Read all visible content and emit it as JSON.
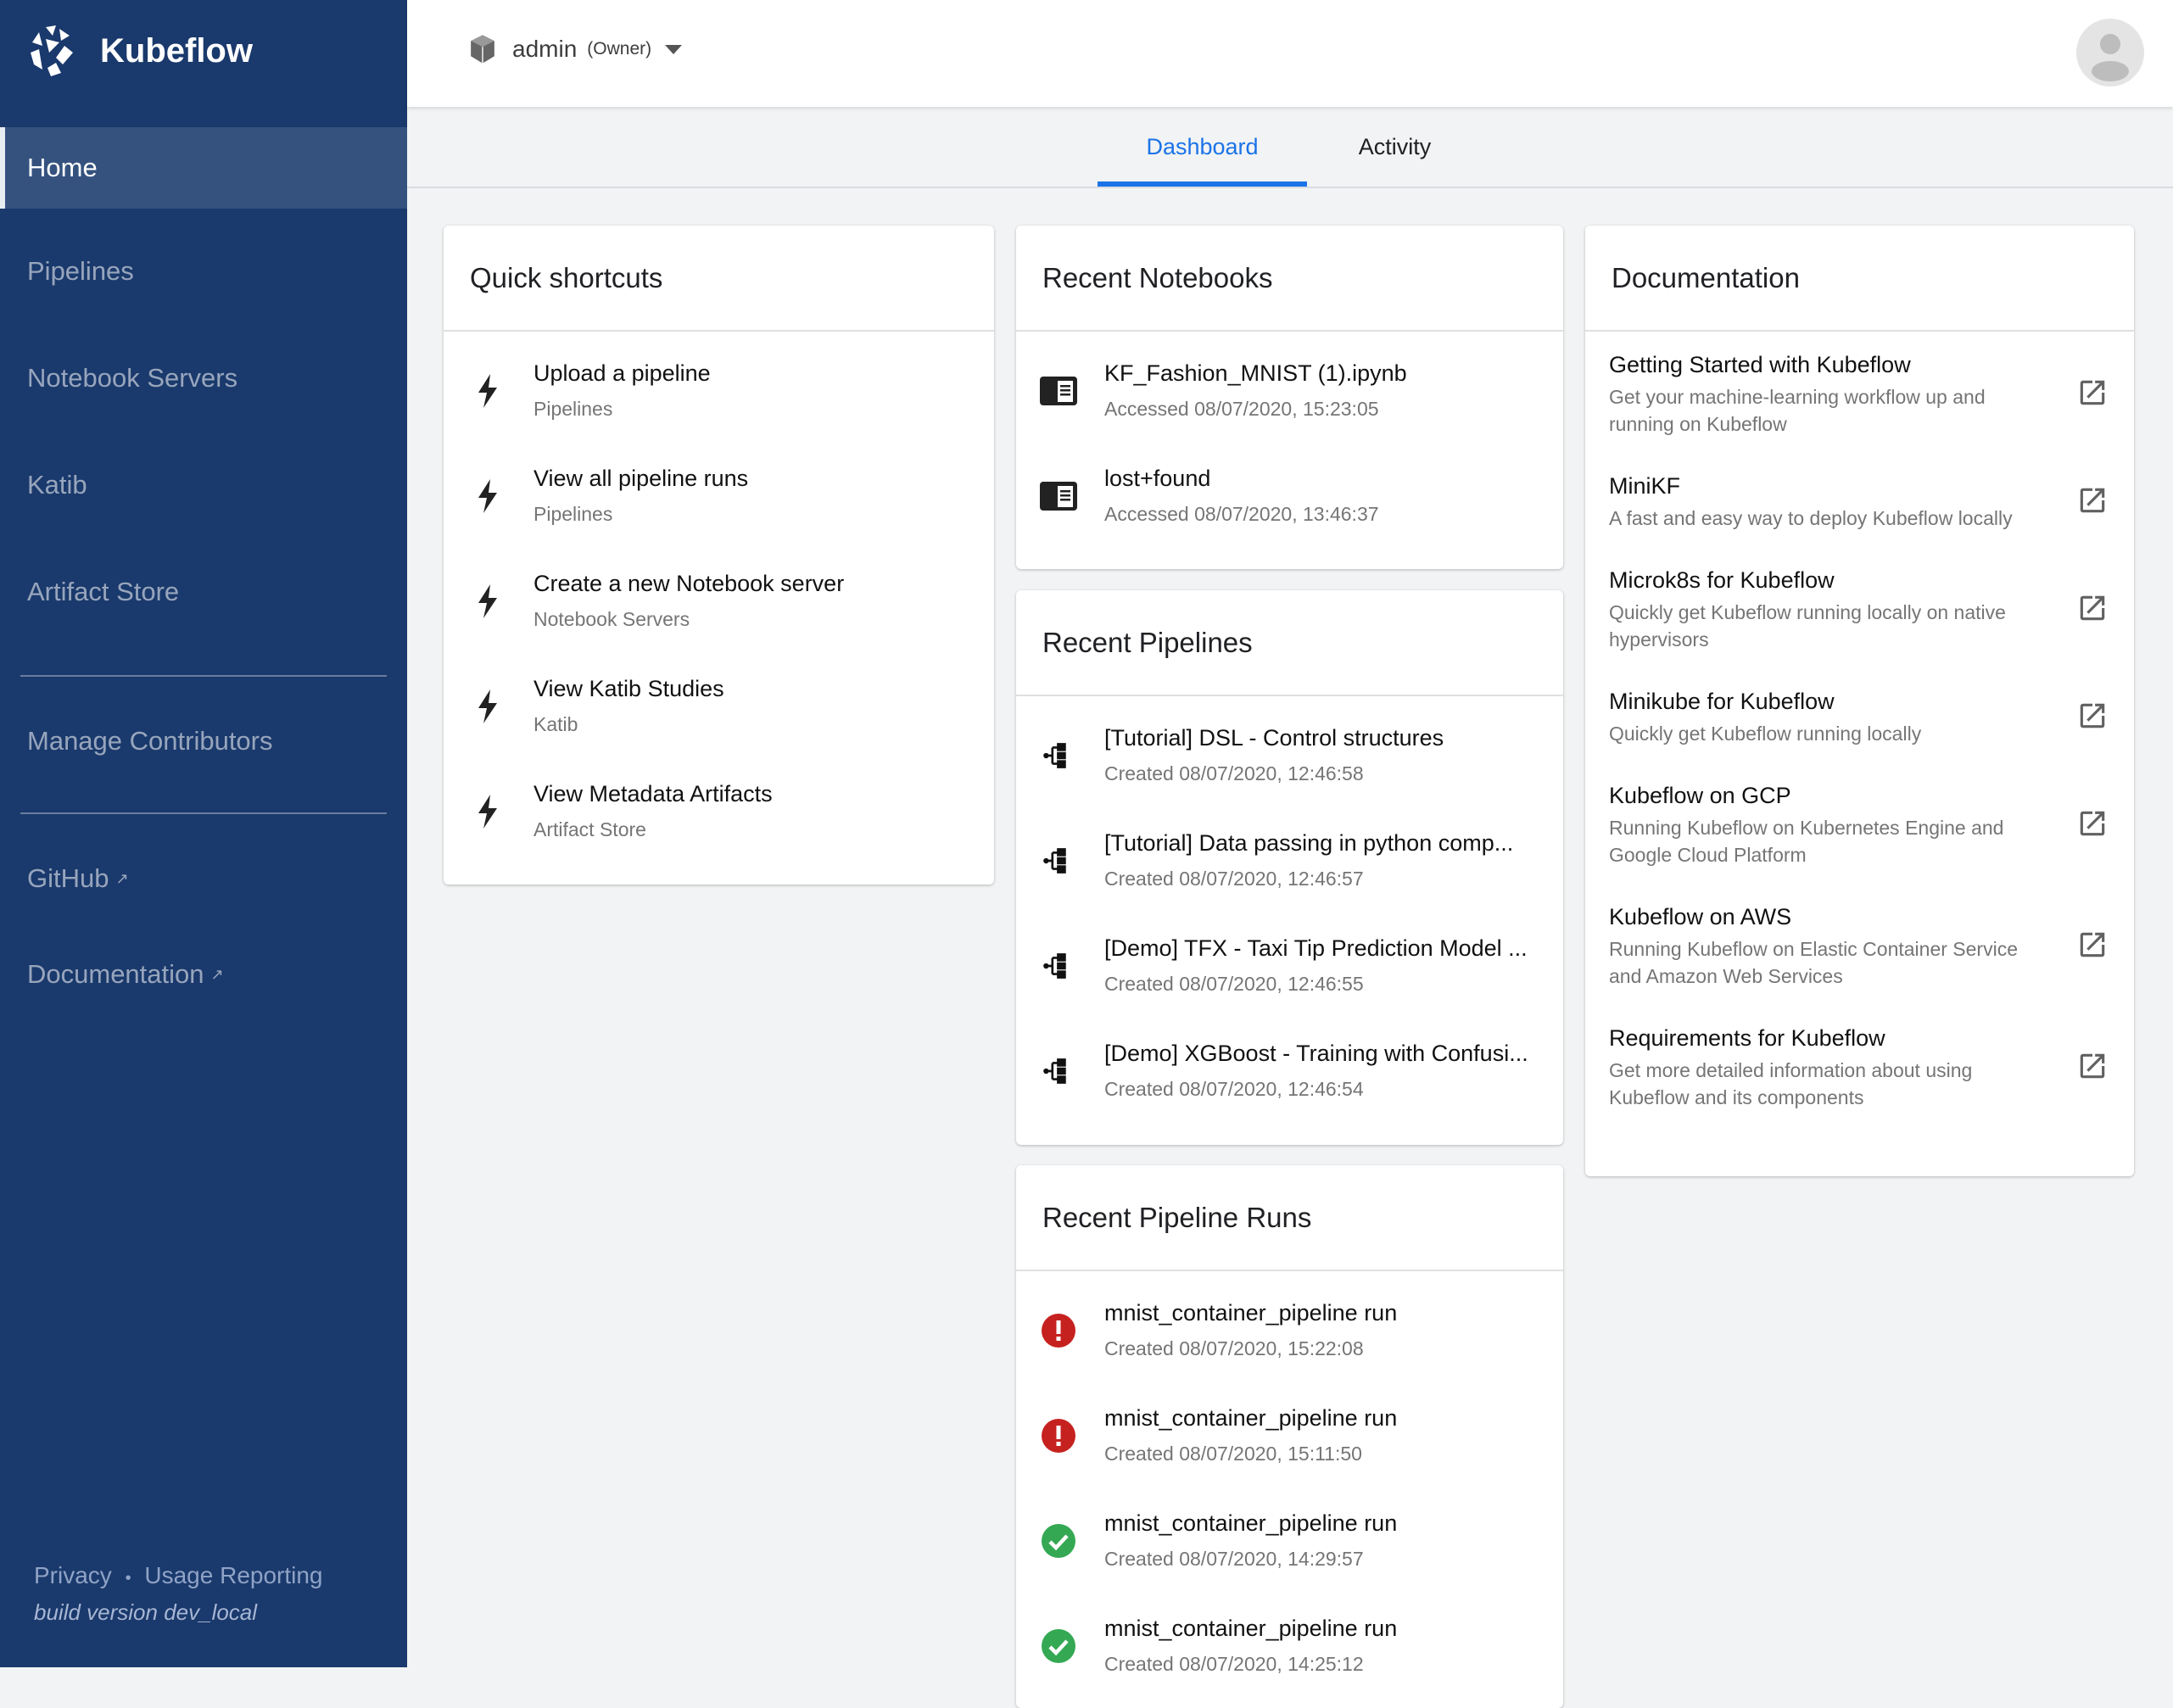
{
  "app": {
    "name": "Kubeflow"
  },
  "sidebar": {
    "items": [
      {
        "label": "Home",
        "active": true
      },
      {
        "label": "Pipelines"
      },
      {
        "label": "Notebook Servers"
      },
      {
        "label": "Katib"
      },
      {
        "label": "Artifact Store"
      }
    ],
    "manage": "Manage Contributors",
    "links": [
      {
        "label": "GitHub",
        "icon": "external-link-icon"
      },
      {
        "label": "Documentation",
        "icon": "external-link-icon"
      }
    ],
    "footer": {
      "privacy": "Privacy",
      "separator": "•",
      "usage": "Usage Reporting",
      "build": "build version dev_local"
    }
  },
  "header": {
    "namespace": "admin",
    "role": "(Owner)"
  },
  "tabs": [
    {
      "label": "Dashboard",
      "active": true
    },
    {
      "label": "Activity"
    }
  ],
  "colors": {
    "sidebar": "#1a396c",
    "accent": "#1a73e8",
    "error": "#c5221f",
    "success": "#34a853"
  },
  "quick_shortcuts": {
    "title": "Quick shortcuts",
    "items": [
      {
        "title": "Upload a pipeline",
        "sub": "Pipelines"
      },
      {
        "title": "View all pipeline runs",
        "sub": "Pipelines"
      },
      {
        "title": "Create a new Notebook server",
        "sub": "Notebook Servers"
      },
      {
        "title": "View Katib Studies",
        "sub": "Katib"
      },
      {
        "title": "View Metadata Artifacts",
        "sub": "Artifact Store"
      }
    ]
  },
  "recent_notebooks": {
    "title": "Recent Notebooks",
    "items": [
      {
        "title": "KF_Fashion_MNIST (1).ipynb",
        "sub": "Accessed 08/07/2020, 15:23:05"
      },
      {
        "title": "lost+found",
        "sub": "Accessed 08/07/2020, 13:46:37"
      }
    ]
  },
  "recent_pipelines": {
    "title": "Recent Pipelines",
    "items": [
      {
        "title": "[Tutorial] DSL - Control structures",
        "sub": "Created 08/07/2020, 12:46:58"
      },
      {
        "title": "[Tutorial] Data passing in python comp...",
        "sub": "Created 08/07/2020, 12:46:57"
      },
      {
        "title": "[Demo] TFX - Taxi Tip Prediction Model ...",
        "sub": "Created 08/07/2020, 12:46:55"
      },
      {
        "title": "[Demo] XGBoost - Training with Confusi...",
        "sub": "Created 08/07/2020, 12:46:54"
      }
    ]
  },
  "recent_runs": {
    "title": "Recent Pipeline Runs",
    "items": [
      {
        "title": "mnist_container_pipeline run",
        "sub": "Created 08/07/2020, 15:22:08",
        "status": "error"
      },
      {
        "title": "mnist_container_pipeline run",
        "sub": "Created 08/07/2020, 15:11:50",
        "status": "error"
      },
      {
        "title": "mnist_container_pipeline run",
        "sub": "Created 08/07/2020, 14:29:57",
        "status": "success"
      },
      {
        "title": "mnist_container_pipeline run",
        "sub": "Created 08/07/2020, 14:25:12",
        "status": "success"
      }
    ]
  },
  "documentation": {
    "title": "Documentation",
    "items": [
      {
        "title": "Getting Started with Kubeflow",
        "sub": "Get your machine-learning workflow up and running on Kubeflow"
      },
      {
        "title": "MiniKF",
        "sub": "A fast and easy way to deploy Kubeflow locally"
      },
      {
        "title": "Microk8s for Kubeflow",
        "sub": "Quickly get Kubeflow running locally on native hypervisors"
      },
      {
        "title": "Minikube for Kubeflow",
        "sub": "Quickly get Kubeflow running locally"
      },
      {
        "title": "Kubeflow on GCP",
        "sub": "Running Kubeflow on Kubernetes Engine and Google Cloud Platform"
      },
      {
        "title": "Kubeflow on AWS",
        "sub": "Running Kubeflow on Elastic Container Service and Amazon Web Services"
      },
      {
        "title": "Requirements for Kubeflow",
        "sub": "Get more detailed information about using Kubeflow and its components"
      }
    ]
  }
}
